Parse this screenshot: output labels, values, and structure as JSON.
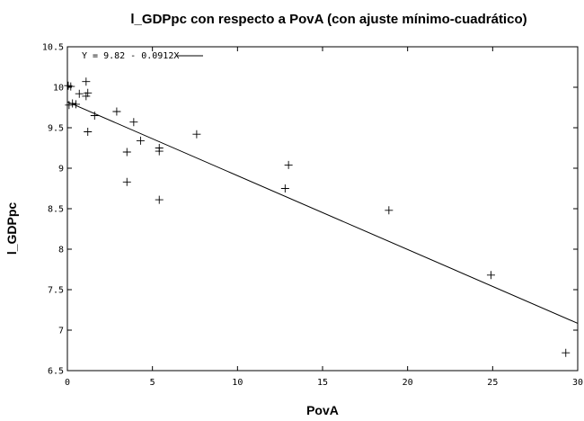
{
  "chart_data": {
    "type": "scatter",
    "title": "l_GDPpc con respecto a PovA (con ajuste mínimo-cuadrático)",
    "xlabel": "PovA",
    "ylabel": "l_GDPpc",
    "xlim": [
      0,
      30
    ],
    "ylim": [
      6.5,
      10.5
    ],
    "x_ticks": [
      "0",
      "5",
      "10",
      "15",
      "20",
      "25",
      "30"
    ],
    "y_ticks": [
      "6.5",
      "7",
      "7.5",
      "8",
      "8.5",
      "9",
      "9.5",
      "10",
      "10.5"
    ],
    "grid": false,
    "legend_position": "top-left",
    "marker": "plus",
    "points": [
      {
        "x": 0.05,
        "y": 10.02
      },
      {
        "x": 0.2,
        "y": 10.01
      },
      {
        "x": 0.1,
        "y": 9.78
      },
      {
        "x": 0.3,
        "y": 9.8
      },
      {
        "x": 0.5,
        "y": 9.79
      },
      {
        "x": 0.7,
        "y": 9.92
      },
      {
        "x": 1.1,
        "y": 10.07
      },
      {
        "x": 1.2,
        "y": 9.93
      },
      {
        "x": 1.1,
        "y": 9.89
      },
      {
        "x": 1.2,
        "y": 9.45
      },
      {
        "x": 1.6,
        "y": 9.65
      },
      {
        "x": 2.9,
        "y": 9.7
      },
      {
        "x": 3.9,
        "y": 9.57
      },
      {
        "x": 4.3,
        "y": 9.34
      },
      {
        "x": 3.5,
        "y": 9.2
      },
      {
        "x": 3.5,
        "y": 8.83
      },
      {
        "x": 5.4,
        "y": 9.25
      },
      {
        "x": 5.4,
        "y": 9.21
      },
      {
        "x": 5.4,
        "y": 8.61
      },
      {
        "x": 7.6,
        "y": 9.42
      },
      {
        "x": 12.8,
        "y": 8.75
      },
      {
        "x": 13.0,
        "y": 9.04
      },
      {
        "x": 18.9,
        "y": 8.48
      },
      {
        "x": 24.9,
        "y": 7.68
      },
      {
        "x": 29.3,
        "y": 6.72
      }
    ],
    "fit": {
      "intercept": 9.82,
      "slope": -0.0912,
      "label": "Y = 9.82 - 0.0912X"
    }
  }
}
